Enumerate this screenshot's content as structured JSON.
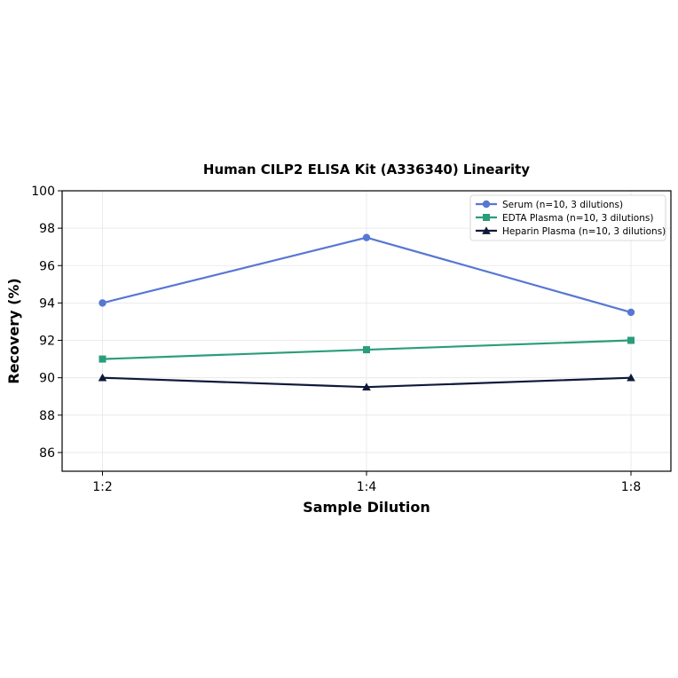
{
  "chart_data": {
    "type": "line",
    "title": "Human CILP2 ELISA Kit (A336340) Linearity",
    "xlabel": "Sample Dilution",
    "ylabel": "Recovery (%)",
    "categories": [
      "1:2",
      "1:4",
      "1:8"
    ],
    "ylim": [
      85,
      100
    ],
    "yticks": [
      86,
      88,
      90,
      92,
      94,
      96,
      98,
      100
    ],
    "grid": true,
    "legend_position": "top-right",
    "series": [
      {
        "name": "Serum (n=10, 3 dilutions)",
        "values": [
          94.0,
          97.5,
          93.5
        ],
        "color": "#5877d3",
        "marker": "circle"
      },
      {
        "name": "EDTA Plasma (n=10, 3 dilutions)",
        "values": [
          91.0,
          91.5,
          92.0
        ],
        "color": "#2a9d7c",
        "marker": "square"
      },
      {
        "name": "Heparin Plasma (n=10, 3 dilutions)",
        "values": [
          90.0,
          89.5,
          90.0
        ],
        "color": "#0e1a3a",
        "marker": "triangle"
      }
    ]
  }
}
